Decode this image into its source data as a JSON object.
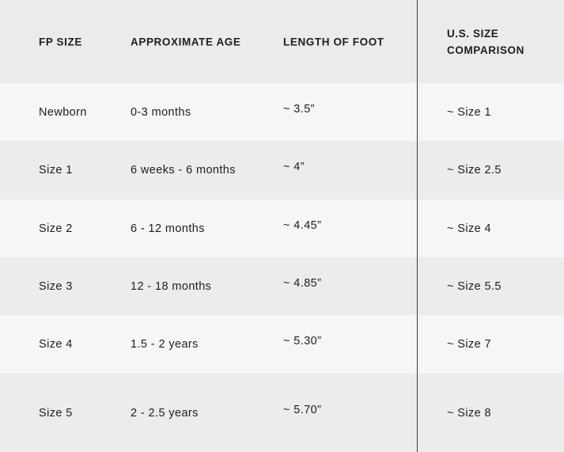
{
  "headers": [
    "FP SIZE",
    "APPROXIMATE AGE",
    "LENGTH OF FOOT",
    "U.S. SIZE",
    "COMPARISON"
  ],
  "rows": [
    [
      "Newborn",
      "0-3 months",
      "~ 3.5”",
      "~ Size 1"
    ],
    [
      "Size 1",
      "6 weeks - 6 months",
      "~ 4”",
      "~ Size 2.5"
    ],
    [
      "Size 2",
      "6 - 12 months",
      "~ 4.45”",
      "~ Size 4"
    ],
    [
      "Size 3",
      "12 - 18 months",
      "~ 4.85”",
      "~ Size 5.5"
    ],
    [
      "Size 4",
      "1.5 - 2 years",
      "~ 5.30”",
      "~ Size 7"
    ],
    [
      "Size 5",
      "2 - 2.5 years",
      "~ 5.70”",
      "~ Size 8"
    ]
  ]
}
